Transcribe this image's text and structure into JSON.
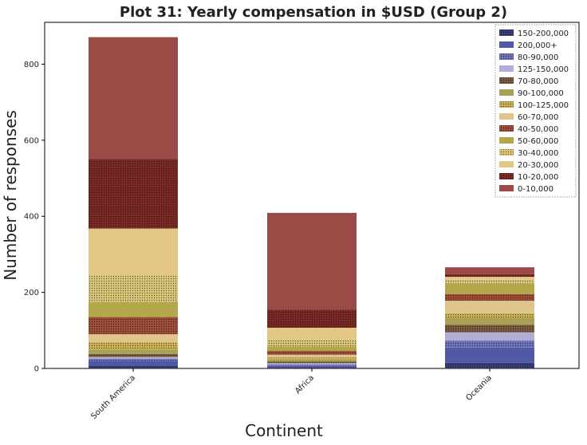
{
  "chart_data": {
    "type": "bar",
    "stacked": true,
    "title": "Plot 31: Yearly compensation in $USD (Group 2)",
    "xlabel": "Continent",
    "ylabel": "Number of responses",
    "categories": [
      "South America",
      "Africa",
      "Oceania"
    ],
    "ylim": [
      0,
      910
    ],
    "yticks": [
      0,
      200,
      400,
      600,
      800
    ],
    "grid": false,
    "legend_position": "top-right",
    "series": [
      {
        "name": "0-10,000",
        "color": "#9c4a45",
        "pattern": "none",
        "values": [
          320,
          255,
          18
        ]
      },
      {
        "name": "10-20,000",
        "color": "#7c2a26",
        "pattern": "dots",
        "values": [
          183,
          47,
          7
        ]
      },
      {
        "name": "20-30,000",
        "color": "#e3c884",
        "pattern": "none",
        "values": [
          123,
          31,
          8
        ]
      },
      {
        "name": "30-40,000",
        "color": "#ddc77a",
        "pattern": "dots",
        "values": [
          70,
          18,
          10
        ]
      },
      {
        "name": "50-60,000",
        "color": "#b3a74c",
        "pattern": "none",
        "values": [
          40,
          12,
          28
        ]
      },
      {
        "name": "40-50,000",
        "color": "#a04e3c",
        "pattern": "dots",
        "values": [
          45,
          10,
          17
        ]
      },
      {
        "name": "60-70,000",
        "color": "#dfc58b",
        "pattern": "none",
        "values": [
          22,
          7,
          33
        ]
      },
      {
        "name": "100-125,000",
        "color": "#cdb453",
        "pattern": "dots",
        "values": [
          18,
          6,
          12
        ]
      },
      {
        "name": "90-100,000",
        "color": "#a9a056",
        "pattern": "none",
        "values": [
          12,
          5,
          18
        ]
      },
      {
        "name": "70-80,000",
        "color": "#7a5c3f",
        "pattern": "dots",
        "values": [
          8,
          4,
          20
        ]
      },
      {
        "name": "125-150,000",
        "color": "#b0aed6",
        "pattern": "none",
        "values": [
          5,
          4,
          22
        ]
      },
      {
        "name": "80-90,000",
        "color": "#6f74bd",
        "pattern": "dots",
        "values": [
          5,
          3,
          18
        ]
      },
      {
        "name": "200,000+",
        "color": "#5059a3",
        "pattern": "none",
        "values": [
          12,
          4,
          40
        ]
      },
      {
        "name": "150-200,000",
        "color": "#3a3f7a",
        "pattern": "dots",
        "values": [
          8,
          3,
          15
        ]
      }
    ],
    "legend_order": [
      "150-200,000",
      "200,000+",
      "80-90,000",
      "125-150,000",
      "70-80,000",
      "90-100,000",
      "100-125,000",
      "60-70,000",
      "40-50,000",
      "50-60,000",
      "30-40,000",
      "20-30,000",
      "10-20,000",
      "0-10,000"
    ]
  }
}
